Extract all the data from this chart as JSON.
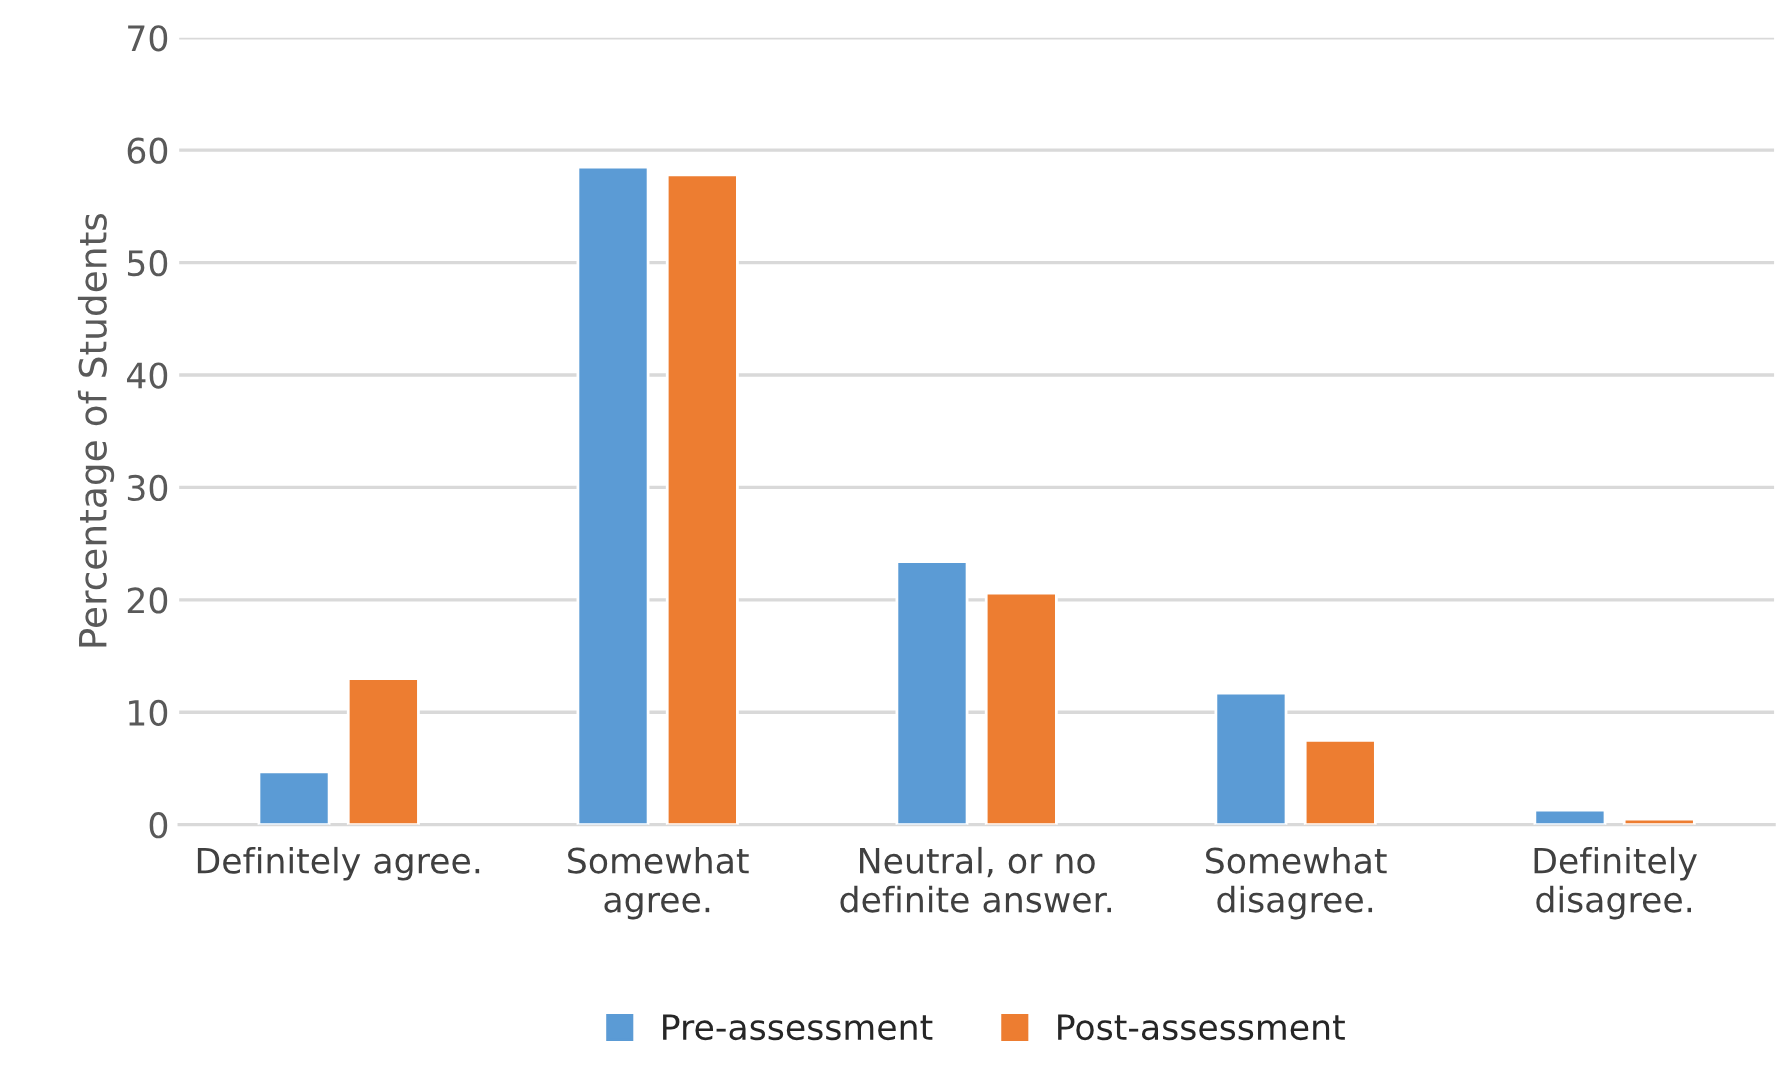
{
  "chart_data": {
    "type": "bar",
    "ylabel": "Percentage of Students",
    "categories": [
      "Definitely agree.",
      "Somewhat\nagree.",
      "Neutral, or no\ndefinite answer.",
      "Somewhat\ndisagree.",
      "Definitely\ndisagree."
    ],
    "series": [
      {
        "name": "Pre-assessment",
        "color": "#5b9bd5",
        "values": [
          4.7,
          58.5,
          23.4,
          11.7,
          1.3
        ]
      },
      {
        "name": "Post-assessment",
        "color": "#ed7d31",
        "values": [
          13.0,
          57.8,
          20.6,
          7.5,
          0.5
        ]
      }
    ],
    "ylim": [
      0,
      70
    ],
    "yticks": [
      0,
      10,
      20,
      30,
      40,
      50,
      60,
      70
    ],
    "grid": "y",
    "legend": "bottom"
  }
}
